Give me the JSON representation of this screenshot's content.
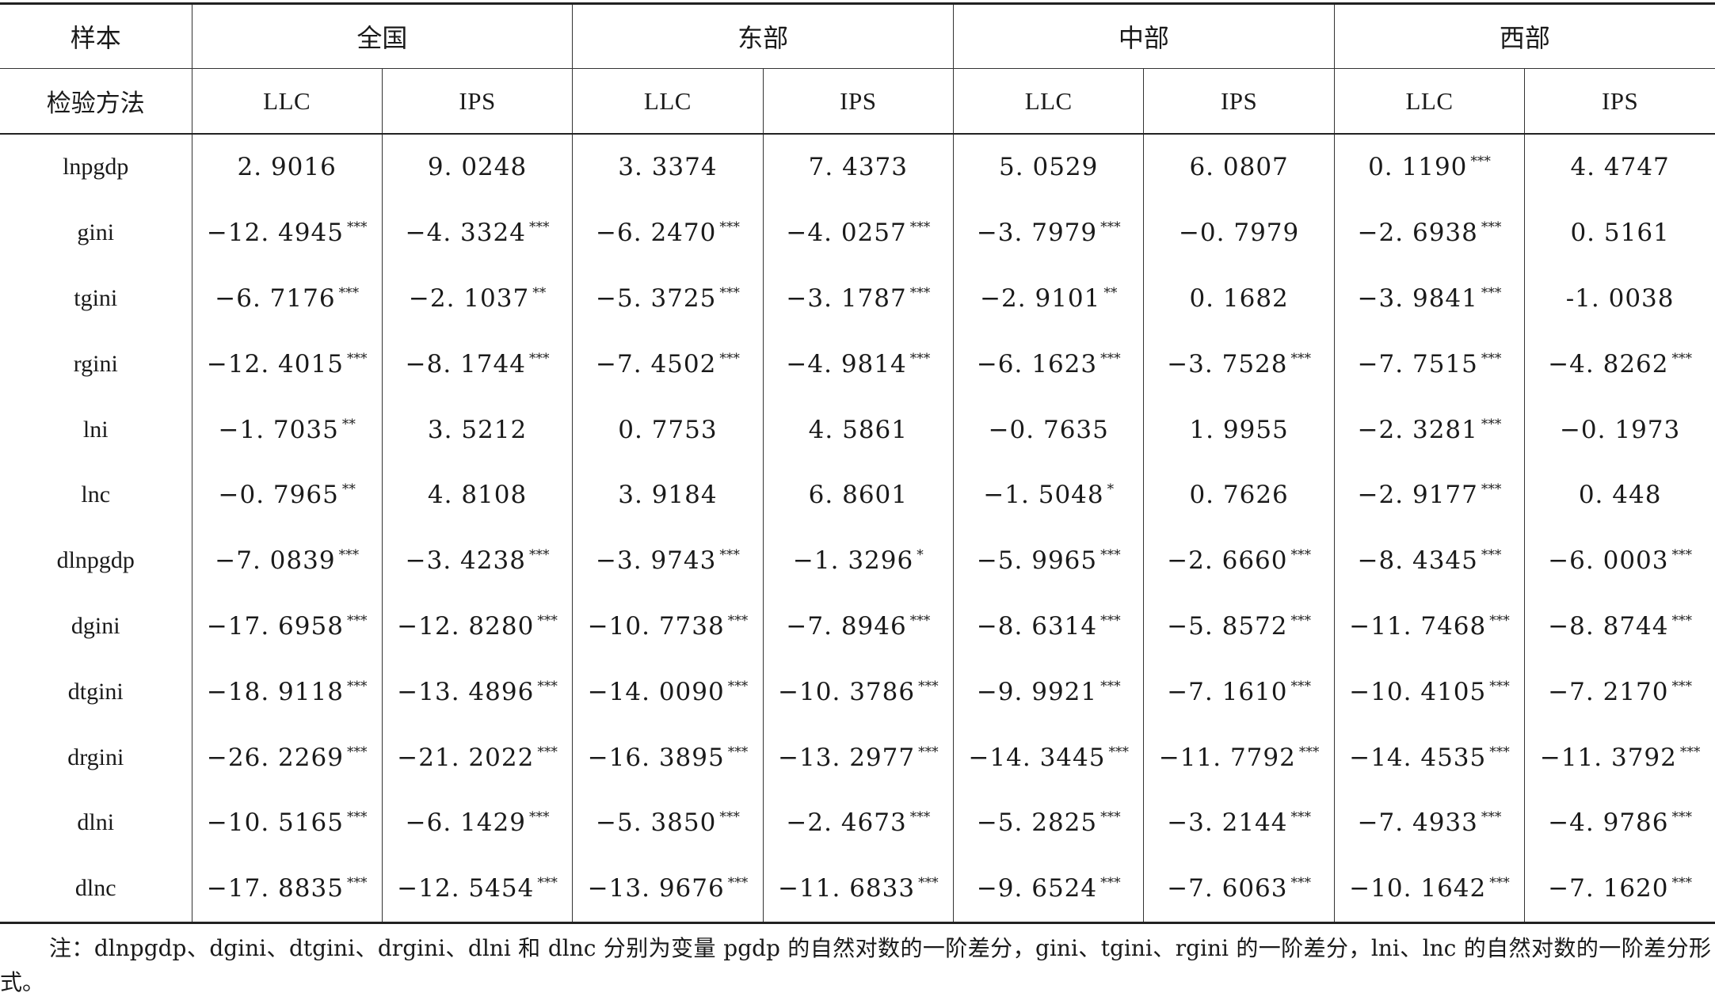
{
  "header": {
    "sample_label": "样本",
    "method_label": "检验方法",
    "regions": [
      "全国",
      "东部",
      "中部",
      "西部"
    ],
    "methods": [
      "LLC",
      "IPS",
      "LLC",
      "IPS",
      "LLC",
      "IPS",
      "LLC",
      "IPS"
    ]
  },
  "rows": [
    {
      "var": "lnpgdp",
      "cells": [
        [
          "2. 9016",
          ""
        ],
        [
          "9. 0248",
          ""
        ],
        [
          "3. 3374",
          ""
        ],
        [
          "7. 4373",
          ""
        ],
        [
          "5. 0529",
          ""
        ],
        [
          "6. 0807",
          ""
        ],
        [
          "0. 1190",
          "***"
        ],
        [
          "4. 4747",
          ""
        ]
      ]
    },
    {
      "var": "gini",
      "cells": [
        [
          "−12. 4945",
          "***"
        ],
        [
          "−4. 3324",
          "***"
        ],
        [
          "−6. 2470",
          "***"
        ],
        [
          "−4. 0257",
          "***"
        ],
        [
          "−3. 7979",
          "***"
        ],
        [
          "−0. 7979",
          ""
        ],
        [
          "−2. 6938",
          "***"
        ],
        [
          "0. 5161",
          ""
        ]
      ]
    },
    {
      "var": "tgini",
      "cells": [
        [
          "−6. 7176",
          "***"
        ],
        [
          "−2. 1037",
          "**"
        ],
        [
          "−5. 3725",
          "***"
        ],
        [
          "−3. 1787",
          "***"
        ],
        [
          "−2. 9101",
          "**"
        ],
        [
          "0. 1682",
          ""
        ],
        [
          "−3. 9841",
          "***"
        ],
        [
          "-1. 0038",
          ""
        ]
      ]
    },
    {
      "var": "rgini",
      "cells": [
        [
          "−12. 4015",
          "***"
        ],
        [
          "−8. 1744",
          "***"
        ],
        [
          "−7. 4502",
          "***"
        ],
        [
          "−4. 9814",
          "***"
        ],
        [
          "−6. 1623",
          "***"
        ],
        [
          "−3. 7528",
          "***"
        ],
        [
          "−7. 7515",
          "***"
        ],
        [
          "−4. 8262",
          "***"
        ]
      ]
    },
    {
      "var": "lni",
      "cells": [
        [
          "−1. 7035",
          "**"
        ],
        [
          "3. 5212",
          ""
        ],
        [
          "0. 7753",
          ""
        ],
        [
          "4. 5861",
          ""
        ],
        [
          "−0. 7635",
          ""
        ],
        [
          "1. 9955",
          ""
        ],
        [
          "−2. 3281",
          "***"
        ],
        [
          "−0. 1973",
          ""
        ]
      ]
    },
    {
      "var": "lnc",
      "cells": [
        [
          "−0. 7965",
          "**"
        ],
        [
          "4. 8108",
          ""
        ],
        [
          "3. 9184",
          ""
        ],
        [
          "6. 8601",
          ""
        ],
        [
          "−1. 5048",
          "*"
        ],
        [
          "0. 7626",
          ""
        ],
        [
          "−2. 9177",
          "***"
        ],
        [
          "0. 448",
          ""
        ]
      ]
    },
    {
      "var": "dlnpgdp",
      "cells": [
        [
          "−7. 0839",
          "***"
        ],
        [
          "−3. 4238",
          "***"
        ],
        [
          "−3. 9743",
          "***"
        ],
        [
          "−1. 3296",
          "*"
        ],
        [
          "−5. 9965",
          "***"
        ],
        [
          "−2. 6660",
          "***"
        ],
        [
          "−8. 4345",
          "***"
        ],
        [
          "−6. 0003",
          "***"
        ]
      ]
    },
    {
      "var": "dgini",
      "cells": [
        [
          "−17. 6958",
          "***"
        ],
        [
          "−12. 8280",
          "***"
        ],
        [
          "−10. 7738",
          "***"
        ],
        [
          "−7. 8946",
          "***"
        ],
        [
          "−8. 6314",
          "***"
        ],
        [
          "−5. 8572",
          "***"
        ],
        [
          "−11. 7468",
          "***"
        ],
        [
          "−8. 8744",
          "***"
        ]
      ]
    },
    {
      "var": "dtgini",
      "cells": [
        [
          "−18. 9118",
          "***"
        ],
        [
          "−13. 4896",
          "***"
        ],
        [
          "−14. 0090",
          "***"
        ],
        [
          "−10. 3786",
          "***"
        ],
        [
          "−9. 9921",
          "***"
        ],
        [
          "−7. 1610",
          "***"
        ],
        [
          "−10. 4105",
          "***"
        ],
        [
          "−7. 2170",
          "***"
        ]
      ]
    },
    {
      "var": "drgini",
      "cells": [
        [
          "−26. 2269",
          "***"
        ],
        [
          "−21. 2022",
          "***"
        ],
        [
          "−16. 3895",
          "***"
        ],
        [
          "−13. 2977",
          "***"
        ],
        [
          "−14. 3445",
          "***"
        ],
        [
          "−11. 7792",
          "***"
        ],
        [
          "−14. 4535",
          "***"
        ],
        [
          "−11. 3792",
          "***"
        ]
      ]
    },
    {
      "var": "dlni",
      "cells": [
        [
          "−10. 5165",
          "***"
        ],
        [
          "−6. 1429",
          "***"
        ],
        [
          "−5. 3850",
          "***"
        ],
        [
          "−2. 4673",
          "***"
        ],
        [
          "−5. 2825",
          "***"
        ],
        [
          "−3. 2144",
          "***"
        ],
        [
          "−7. 4933",
          "***"
        ],
        [
          "−4. 9786",
          "***"
        ]
      ]
    },
    {
      "var": "dlnc",
      "cells": [
        [
          "−17. 8835",
          "***"
        ],
        [
          "−12. 5454",
          "***"
        ],
        [
          "−13. 9676",
          "***"
        ],
        [
          "−11. 6833",
          "***"
        ],
        [
          "−9. 6524",
          "***"
        ],
        [
          "−7. 6063",
          "***"
        ],
        [
          "−10. 1642",
          "***"
        ],
        [
          "−7. 1620",
          "***"
        ]
      ]
    }
  ],
  "note": "注：dlnpgdp、dgini、dtgini、drgini、dlni 和 dlnc 分别为变量 pgdp 的自然对数的一阶差分，gini、tgini、rgini 的一阶差分，lni、lnc 的自然对数的一阶差分形式。"
}
